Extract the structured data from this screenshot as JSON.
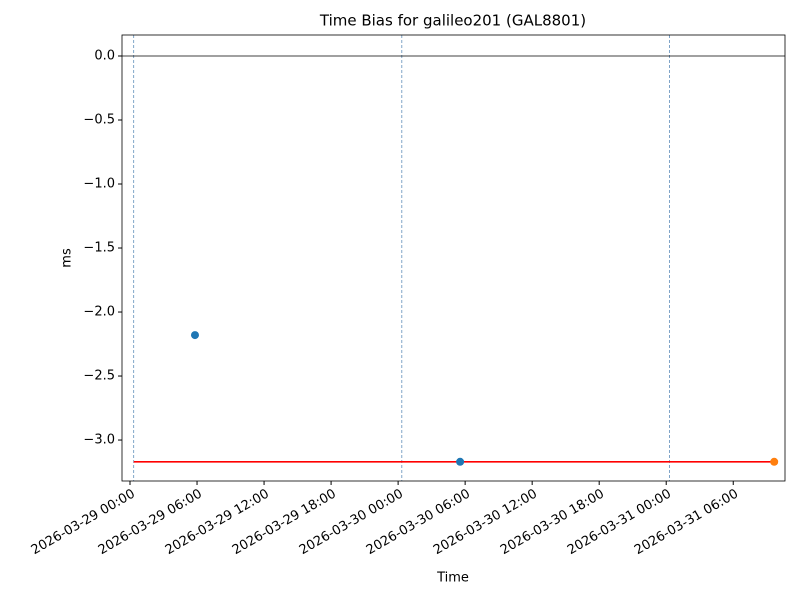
{
  "chart_data": {
    "type": "scatter",
    "title": "Time Bias for galileo201 (GAL8801)",
    "x_label": "Time",
    "y_label": "ms",
    "xlim": [
      "2026-03-28T23:17",
      "2026-03-31T10:38"
    ],
    "ylim": [
      -3.32,
      0.164
    ],
    "xticks": [
      {
        "value": "2026-03-29T00:00",
        "label": "2026-03-29 00:00"
      },
      {
        "value": "2026-03-29T06:00",
        "label": "2026-03-29 06:00"
      },
      {
        "value": "2026-03-29T12:00",
        "label": "2026-03-29 12:00"
      },
      {
        "value": "2026-03-29T18:00",
        "label": "2026-03-29 18:00"
      },
      {
        "value": "2026-03-30T00:00",
        "label": "2026-03-30 00:00"
      },
      {
        "value": "2026-03-30T06:00",
        "label": "2026-03-30 06:00"
      },
      {
        "value": "2026-03-30T12:00",
        "label": "2026-03-30 12:00"
      },
      {
        "value": "2026-03-30T18:00",
        "label": "2026-03-30 18:00"
      },
      {
        "value": "2026-03-31T00:00",
        "label": "2026-03-31 00:00"
      },
      {
        "value": "2026-03-31T06:00",
        "label": "2026-03-31 06:00"
      }
    ],
    "yticks": [
      {
        "value": -3,
        "label": "−3.0"
      },
      {
        "value": -2.5,
        "label": "−2.5"
      },
      {
        "value": -2,
        "label": "−2.0"
      },
      {
        "value": -1.5,
        "label": "−1.5"
      },
      {
        "value": -1,
        "label": "−1.0"
      },
      {
        "value": -0.5,
        "label": "−0.5"
      },
      {
        "value": 0,
        "label": "0.0"
      }
    ],
    "hline": {
      "y": 0,
      "color": "#000000"
    },
    "vlines": {
      "x": [
        "2026-03-29T00:20",
        "2026-03-30T00:20",
        "2026-03-31T00:18"
      ],
      "color": "#4a7fb0"
    },
    "series": [
      {
        "style": "line",
        "color": "#ff0000",
        "x": [
          "2026-03-29T00:20",
          "2026-03-31T09:40"
        ],
        "values": [
          -3.17,
          -3.17
        ]
      },
      {
        "style": "marker",
        "color": "#1f77b4",
        "x": [
          "2026-03-29T05:49",
          "2026-03-30T05:33"
        ],
        "values": [
          -2.18,
          -3.17
        ]
      },
      {
        "style": "marker",
        "color": "#ff7f0e",
        "x": [
          "2026-03-31T09:40"
        ],
        "values": [
          -3.17
        ]
      }
    ]
  }
}
